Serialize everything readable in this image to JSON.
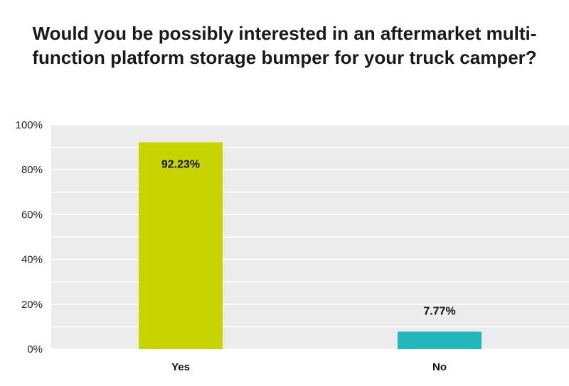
{
  "chart_data": {
    "type": "bar",
    "title": "Would you be possibly interested in an aftermarket multi-function platform storage bumper for your truck camper?",
    "categories": [
      "Yes",
      "No"
    ],
    "values": [
      92.23,
      7.77
    ],
    "value_labels": [
      "92.23%",
      "7.77%"
    ],
    "colors": [
      "#c8d400",
      "#22b8bc"
    ],
    "ylim": [
      0,
      100
    ],
    "yticks": [
      {
        "value": 0,
        "label": "0%"
      },
      {
        "value": 20,
        "label": "20%"
      },
      {
        "value": 40,
        "label": "40%"
      },
      {
        "value": 60,
        "label": "60%"
      },
      {
        "value": 80,
        "label": "80%"
      },
      {
        "value": 100,
        "label": "100%"
      }
    ],
    "grid": true,
    "legend": "none"
  }
}
